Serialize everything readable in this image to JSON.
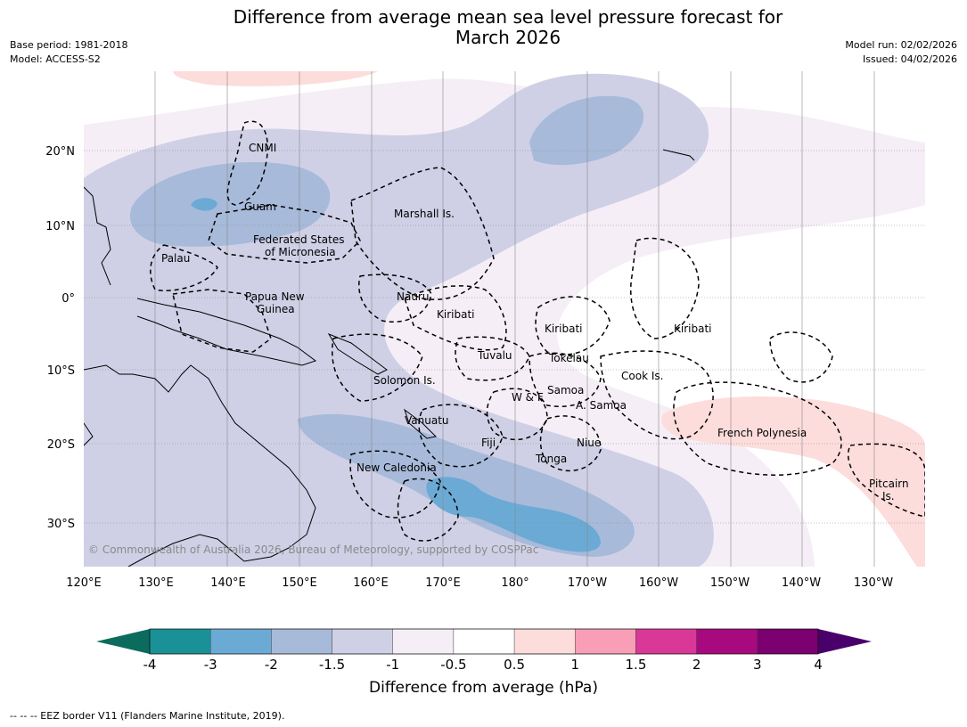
{
  "header": {
    "title_line1": "Difference from average mean sea level pressure forecast for",
    "title_line2": "March 2026",
    "base_period": "Base period: 1981-2018",
    "model": "Model: ACCESS-S2",
    "model_run": "Model run: 02/02/2026",
    "issued": "Issued: 04/02/2026"
  },
  "map": {
    "longitude_ticks": [
      "120°E",
      "130°E",
      "140°E",
      "150°E",
      "160°E",
      "170°E",
      "180°",
      "170°W",
      "160°W",
      "150°W",
      "140°W",
      "130°W"
    ],
    "latitude_ticks": [
      "20°N",
      "10°N",
      "0°",
      "10°S",
      "20°S",
      "30°S"
    ],
    "copyright": "© Commonwealth of Australia 2026, Bureau of Meteorology, supported by COSPPac",
    "place_labels": {
      "cnmi": "CNMI",
      "guam": "Guam",
      "marshall": "Marshall Is.",
      "fsm1": "Federated States",
      "fsm2": "of Micronesia",
      "palau": "Palau",
      "png1": "Papua New",
      "png2": "Guinea",
      "nauru": "Nauru",
      "kiribati_w": "Kiribati",
      "kiribati_c": "Kiribati",
      "kiribati_e": "Kiribati",
      "tuvalu": "Tuvalu",
      "tokelau": "Tokelau",
      "solomon": "Solomon Is.",
      "cook": "Cook Is.",
      "wf": "W & F",
      "samoa": "Samoa",
      "asamoa": "A. Samoa",
      "vanuatu": "Vanuatu",
      "fiji": "Fiji",
      "niue": "Niue",
      "french_polynesia": "French Polynesia",
      "tonga": "Tonga",
      "new_caledonia": "New Caledonia",
      "pitcairn1": "Pitcairn",
      "pitcairn2": "Is."
    }
  },
  "colorbar": {
    "tick_labels": [
      "-4",
      "-3",
      "-2",
      "-1.5",
      "-1",
      "-0.5",
      "0.5",
      "1",
      "1.5",
      "2",
      "3",
      "4"
    ],
    "colors": [
      "#1a9196",
      "#6aaad4",
      "#a7bad9",
      "#cfd0e6",
      "#f5eef6",
      "#ffffff",
      "#fddcdc",
      "#f89eb6",
      "#d93899",
      "#a9097f",
      "#7c006f"
    ],
    "low_extend_color": "#0b6b5c",
    "high_extend_color": "#4a006a",
    "label": "Difference from average (hPa)"
  },
  "footnote": "--  --  -- EEZ border V11 (Flanders Marine Institute, 2019)."
}
